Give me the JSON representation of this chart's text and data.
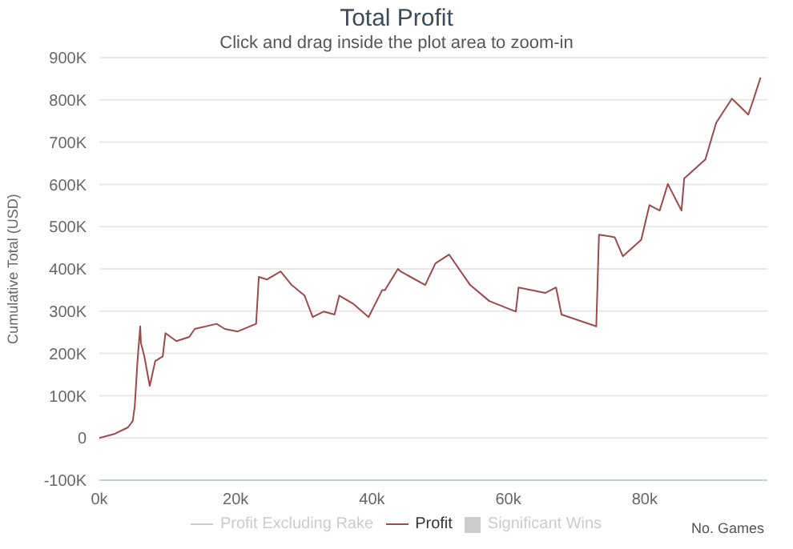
{
  "chart_data": {
    "type": "line",
    "title": "Total Profit",
    "subtitle": "Click and drag inside the plot area to zoom-in",
    "xlabel": "No. Games",
    "ylabel": "Cumulative Total (USD)",
    "x": [
      0,
      2300,
      4200,
      4900,
      5200,
      5600,
      6000,
      6100,
      6600,
      7400,
      8200,
      9300,
      9700,
      11300,
      13200,
      14000,
      17200,
      18400,
      20300,
      23000,
      23400,
      24600,
      26600,
      28200,
      30100,
      31300,
      32900,
      34500,
      35200,
      37200,
      39500,
      41500,
      41900,
      43800,
      44200,
      47800,
      49300,
      51300,
      54400,
      57200,
      61100,
      61500,
      65400,
      67000,
      67800,
      72900,
      73300,
      75600,
      76800,
      79500,
      80700,
      82200,
      83400,
      85400,
      85800,
      88900,
      90500,
      92800,
      95200,
      96000,
      97000
    ],
    "series": [
      {
        "name": "Profit Excluding Rake",
        "color": "#cccccc",
        "values": [
          null,
          null,
          null,
          null,
          null,
          null,
          null,
          null,
          null,
          null,
          null,
          null,
          null,
          null,
          null,
          null,
          null,
          null,
          null,
          null,
          null,
          null,
          null,
          null,
          null,
          null,
          null,
          null,
          null,
          null,
          null,
          null,
          null,
          null,
          null,
          null,
          null,
          null,
          null,
          null,
          null,
          null,
          null,
          null,
          null,
          null,
          null,
          null,
          null,
          null,
          null,
          null,
          null,
          null,
          null,
          null,
          null,
          null,
          null,
          null,
          null
        ]
      },
      {
        "name": "Profit",
        "color": "#9c4a4a",
        "values": [
          0,
          10000,
          25000,
          40000,
          75000,
          182000,
          264000,
          225000,
          193000,
          123000,
          182000,
          193000,
          248000,
          229000,
          239000,
          258000,
          270000,
          258000,
          252000,
          270000,
          381000,
          375000,
          394000,
          362000,
          337000,
          286000,
          299000,
          292000,
          337000,
          318000,
          286000,
          350000,
          350000,
          400000,
          394000,
          362000,
          413000,
          434000,
          362000,
          324000,
          299000,
          356000,
          343000,
          356000,
          292000,
          264000,
          481000,
          475000,
          430000,
          469000,
          551000,
          538000,
          601000,
          538000,
          614000,
          659000,
          746000,
          803000,
          765000,
          803000,
          853000
        ]
      },
      {
        "name": "Significant Wins",
        "type": "area",
        "color": "#cccccc",
        "values": [
          null,
          null,
          null,
          null,
          null,
          null,
          null,
          null,
          null,
          null,
          null,
          null,
          null,
          null,
          null,
          null,
          null,
          null,
          null,
          null,
          null,
          null,
          null,
          null,
          null,
          null,
          null,
          null,
          null,
          null,
          null,
          null,
          null,
          null,
          null,
          null,
          null,
          null,
          null,
          null,
          null,
          null,
          null,
          null,
          null,
          null,
          null,
          null,
          null,
          null,
          null,
          null,
          null,
          null,
          null,
          null,
          null,
          null,
          null,
          null,
          null
        ]
      }
    ],
    "xlim": [
      0,
      98000
    ],
    "xticks": [
      {
        "value": 0,
        "label": "0k"
      },
      {
        "value": 20000,
        "label": "20k"
      },
      {
        "value": 40000,
        "label": "40k"
      },
      {
        "value": 60000,
        "label": "60k"
      },
      {
        "value": 80000,
        "label": "80k"
      }
    ],
    "ylim": [
      -100000,
      900000
    ],
    "yticks": [
      {
        "value": -100000,
        "label": "-100K"
      },
      {
        "value": 0,
        "label": "0"
      },
      {
        "value": 100000,
        "label": "100K"
      },
      {
        "value": 200000,
        "label": "200K"
      },
      {
        "value": 300000,
        "label": "300K"
      },
      {
        "value": 400000,
        "label": "400K"
      },
      {
        "value": 500000,
        "label": "500K"
      },
      {
        "value": 600000,
        "label": "600K"
      },
      {
        "value": 700000,
        "label": "700K"
      },
      {
        "value": 800000,
        "label": "800K"
      },
      {
        "value": 900000,
        "label": "900K"
      }
    ],
    "grid": "y",
    "legend": "bottom",
    "marker": "none",
    "line_style": "solid"
  }
}
